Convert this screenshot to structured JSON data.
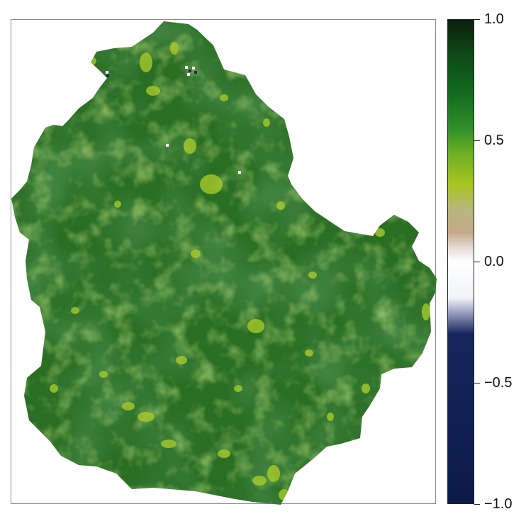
{
  "legend": {
    "ticks": [
      {
        "value": 1.0,
        "label": "1.0"
      },
      {
        "value": 0.5,
        "label": "0.5"
      },
      {
        "value": 0.0,
        "label": "0.0"
      },
      {
        "value": -0.5,
        "label": "−0.5"
      },
      {
        "value": -1.0,
        "label": "−1.0"
      }
    ],
    "min": -1.0,
    "max": 1.0,
    "gradient_stops": [
      {
        "value": 1.0,
        "color": "#0a1f0c"
      },
      {
        "value": 0.85,
        "color": "#0f4a17"
      },
      {
        "value": 0.7,
        "color": "#126a1f"
      },
      {
        "value": 0.55,
        "color": "#2f8f2a"
      },
      {
        "value": 0.45,
        "color": "#6cae25"
      },
      {
        "value": 0.32,
        "color": "#a7c61e"
      },
      {
        "value": 0.22,
        "color": "#b7b77a"
      },
      {
        "value": 0.12,
        "color": "#c5a98b"
      },
      {
        "value": 0.05,
        "color": "#e8e2db"
      },
      {
        "value": 0.0,
        "color": "#ffffff"
      },
      {
        "value": -0.15,
        "color": "#f3f4f8"
      },
      {
        "value": -0.22,
        "color": "#8b93b4"
      },
      {
        "value": -0.3,
        "color": "#16265c"
      },
      {
        "value": -1.0,
        "color": "#0c1a4a"
      }
    ]
  },
  "map": {
    "base_color": "#2a6e24",
    "dark_color": "#1f5a1c",
    "light_color": "#5a9a2a",
    "highlight_color": "#a9cc2c"
  }
}
